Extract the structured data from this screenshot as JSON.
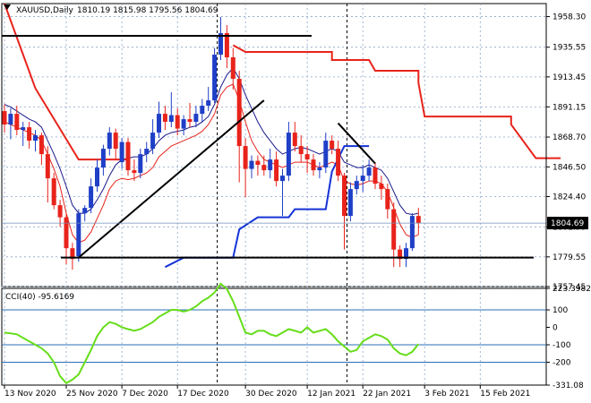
{
  "header": {
    "symbol": "XAUUSD,Daily",
    "ohlc": "1810.19 1815.98 1795.56 1804.69"
  },
  "price_badge": "1804.69",
  "cci_header": "CCI(40) -95.6169",
  "colors": {
    "bull": "#1f3fc7",
    "bear": "#e8231b",
    "ma_upper": "#1a1a8c",
    "ma_lower": "#e8231b",
    "stop_red": "#e8231b",
    "stop_blue": "#1433d8",
    "cci": "#66dd1a",
    "grid": "#8aa4c8",
    "level": "#2a6fb8"
  },
  "chart_data": [
    {
      "type": "candlestick",
      "title": "XAUUSD,Daily",
      "ylim": [
        1757.45,
        1968
      ],
      "y_ticks": [
        "1958.30",
        "1935.55",
        "1913.45",
        "1891.15",
        "1868.70",
        "1846.50",
        "1824.40",
        "1801.90",
        "1779.55",
        "1757.45"
      ],
      "x_ticks": [
        "13 Nov 2020",
        "25 Nov 2020",
        "7 Dec 2020",
        "17 Dec 2020",
        "30 Dec 2020",
        "12 Jan 2021",
        "22 Jan 2021",
        "3 Feb 2021",
        "15 Feb 2021"
      ],
      "candles": [
        [
          1888,
          1893,
          1872,
          1878
        ],
        [
          1878,
          1890,
          1867,
          1886
        ],
        [
          1886,
          1892,
          1870,
          1874
        ],
        [
          1874,
          1880,
          1862,
          1876
        ],
        [
          1876,
          1880,
          1860,
          1866
        ],
        [
          1866,
          1874,
          1858,
          1870
        ],
        [
          1870,
          1872,
          1848,
          1856
        ],
        [
          1856,
          1862,
          1820,
          1838
        ],
        [
          1838,
          1842,
          1815,
          1818
        ],
        [
          1818,
          1822,
          1802,
          1809
        ],
        [
          1809,
          1812,
          1774,
          1786
        ],
        [
          1786,
          1790,
          1770,
          1778
        ],
        [
          1780,
          1815,
          1776,
          1812
        ],
        [
          1812,
          1818,
          1806,
          1816
        ],
        [
          1816,
          1838,
          1812,
          1832
        ],
        [
          1832,
          1852,
          1828,
          1846
        ],
        [
          1846,
          1863,
          1840,
          1860
        ],
        [
          1860,
          1876,
          1855,
          1872
        ],
        [
          1872,
          1875,
          1852,
          1860
        ],
        [
          1850,
          1868,
          1845,
          1865
        ],
        [
          1865,
          1868,
          1840,
          1844
        ],
        [
          1844,
          1852,
          1836,
          1842
        ],
        [
          1842,
          1860,
          1838,
          1856
        ],
        [
          1856,
          1865,
          1850,
          1860
        ],
        [
          1860,
          1882,
          1856,
          1872
        ],
        [
          1872,
          1895,
          1868,
          1886
        ],
        [
          1886,
          1892,
          1874,
          1880
        ],
        [
          1880,
          1902,
          1876,
          1885
        ],
        [
          1885,
          1890,
          1870,
          1875
        ],
        [
          1875,
          1885,
          1870,
          1882
        ],
        [
          1882,
          1894,
          1876,
          1880
        ],
        [
          1880,
          1892,
          1876,
          1886
        ],
        [
          1886,
          1897,
          1880,
          1892
        ],
        [
          1892,
          1906,
          1888,
          1896
        ],
        [
          1896,
          1935,
          1894,
          1930
        ],
        [
          1930,
          1958,
          1926,
          1946
        ],
        [
          1946,
          1952,
          1920,
          1928
        ],
        [
          1928,
          1935,
          1904,
          1912
        ],
        [
          1912,
          1918,
          1835,
          1862
        ],
        [
          1862,
          1868,
          1824,
          1845
        ],
        [
          1845,
          1855,
          1838,
          1851
        ],
        [
          1851,
          1855,
          1840,
          1848
        ],
        [
          1848,
          1855,
          1840,
          1844
        ],
        [
          1844,
          1860,
          1838,
          1852
        ],
        [
          1852,
          1858,
          1832,
          1836
        ],
        [
          1836,
          1845,
          1810,
          1840
        ],
        [
          1840,
          1880,
          1836,
          1872
        ],
        [
          1872,
          1880,
          1858,
          1862
        ],
        [
          1862,
          1870,
          1850,
          1856
        ],
        [
          1856,
          1862,
          1842,
          1852
        ],
        [
          1852,
          1856,
          1840,
          1844
        ],
        [
          1844,
          1850,
          1838,
          1846
        ],
        [
          1846,
          1872,
          1842,
          1866
        ],
        [
          1866,
          1870,
          1856,
          1860
        ],
        [
          1860,
          1866,
          1836,
          1840
        ],
        [
          1840,
          1842,
          1785,
          1810
        ],
        [
          1810,
          1835,
          1806,
          1830
        ],
        [
          1830,
          1840,
          1826,
          1836
        ],
        [
          1836,
          1848,
          1828,
          1840
        ],
        [
          1840,
          1852,
          1836,
          1846
        ],
        [
          1846,
          1850,
          1830,
          1834
        ],
        [
          1834,
          1840,
          1822,
          1830
        ],
        [
          1830,
          1834,
          1808,
          1815
        ],
        [
          1815,
          1820,
          1772,
          1785
        ],
        [
          1785,
          1788,
          1772,
          1778
        ],
        [
          1778,
          1790,
          1772,
          1786
        ],
        [
          1786,
          1812,
          1784,
          1810
        ],
        [
          1810,
          1816,
          1796,
          1804.69
        ]
      ],
      "ma_upper": [
        1893,
        1891,
        1888,
        1885,
        1882,
        1880,
        1876,
        1866,
        1856,
        1845,
        1832,
        1818,
        1812,
        1812,
        1815,
        1822,
        1830,
        1840,
        1848,
        1852,
        1853,
        1854,
        1854,
        1856,
        1860,
        1866,
        1870,
        1872,
        1873,
        1874,
        1876,
        1877,
        1880,
        1884,
        1893,
        1906,
        1915,
        1920,
        1912,
        1900,
        1890,
        1880,
        1872,
        1866,
        1860,
        1856,
        1858,
        1860,
        1861,
        1860,
        1858,
        1856,
        1858,
        1860,
        1858,
        1850,
        1848,
        1846,
        1846,
        1848,
        1846,
        1844,
        1838,
        1828,
        1818,
        1812,
        1811,
        1812
      ],
      "ma_lower": [
        1880,
        1878,
        1876,
        1874,
        1872,
        1870,
        1866,
        1856,
        1845,
        1832,
        1812,
        1796,
        1790,
        1792,
        1798,
        1808,
        1818,
        1830,
        1836,
        1838,
        1837,
        1838,
        1840,
        1842,
        1846,
        1854,
        1858,
        1862,
        1864,
        1866,
        1868,
        1870,
        1873,
        1878,
        1886,
        1900,
        1906,
        1908,
        1896,
        1880,
        1866,
        1858,
        1852,
        1850,
        1848,
        1846,
        1848,
        1850,
        1850,
        1850,
        1848,
        1846,
        1848,
        1850,
        1848,
        1836,
        1834,
        1833,
        1834,
        1836,
        1836,
        1834,
        1828,
        1816,
        1804,
        1796,
        1794,
        1796
      ],
      "stop_red": [
        [
          0,
          1968
        ],
        [
          5,
          1905
        ],
        [
          12,
          1852
        ],
        [
          20,
          1852
        ],
        null,
        [
          37,
          1937
        ],
        [
          39,
          1932
        ],
        [
          53,
          1932
        ],
        [
          53,
          1926
        ],
        [
          59,
          1926
        ],
        [
          60,
          1918
        ],
        [
          67,
          1918
        ],
        [
          67,
          1909
        ],
        [
          68,
          1884
        ],
        [
          82,
          1884
        ],
        [
          82,
          1878
        ],
        [
          86,
          1853
        ],
        [
          90,
          1853
        ]
      ],
      "stop_blue": [
        [
          26,
          1772
        ],
        [
          29,
          1779
        ],
        [
          37,
          1779
        ],
        [
          38,
          1800
        ],
        [
          41,
          1809
        ],
        [
          46,
          1809
        ],
        [
          47,
          1815
        ],
        [
          52,
          1815
        ],
        [
          53,
          1843
        ],
        [
          55,
          1862
        ],
        [
          59,
          1862
        ]
      ],
      "support_line": 1779,
      "resistance_line": 1944,
      "trend_up": [
        [
          12,
          1779
        ],
        [
          42,
          1896
        ]
      ],
      "trend_down": [
        [
          54,
          1879
        ],
        [
          60,
          1849
        ]
      ]
    },
    {
      "type": "line",
      "title": "CCI(40) -95.6169",
      "ylim": [
        -331.08,
        223.4
      ],
      "y_ticks": [
        "223.3982",
        "100",
        "0",
        "-100",
        "-200",
        "-331.08"
      ],
      "levels": [
        100,
        -100,
        -200
      ],
      "values": [
        -30,
        -35,
        -40,
        -60,
        -80,
        -100,
        -120,
        -150,
        -200,
        -280,
        -320,
        -300,
        -270,
        -200,
        -130,
        -50,
        0,
        30,
        20,
        0,
        -10,
        -20,
        -10,
        10,
        30,
        60,
        80,
        100,
        100,
        90,
        100,
        120,
        150,
        170,
        200,
        250,
        220,
        150,
        60,
        -30,
        -40,
        -20,
        -20,
        -40,
        -50,
        -30,
        -10,
        -20,
        -30,
        0,
        -30,
        -20,
        -10,
        -40,
        -80,
        -110,
        -140,
        -130,
        -80,
        -60,
        -40,
        -50,
        -70,
        -120,
        -150,
        -160,
        -140,
        -95.6
      ]
    }
  ]
}
